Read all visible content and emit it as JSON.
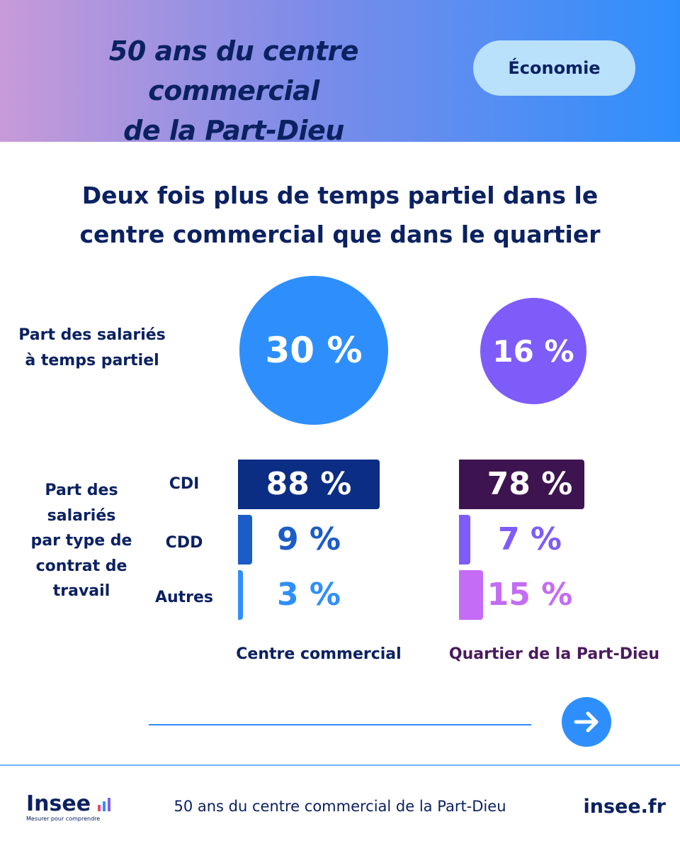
{
  "header": {
    "title_line1": "50 ans du centre commercial",
    "title_line2": "de la Part-Dieu",
    "tag": "Économie"
  },
  "main_title": {
    "line1": "Deux fois plus de temps partiel dans le",
    "line2": "centre commercial que dans le quartier"
  },
  "labels": {
    "part_time_line1": "Part des salariés",
    "part_time_line2": "à temps partiel",
    "contract_lines": [
      "Part des",
      "salariés",
      "par type de",
      "contrat de",
      "travail"
    ]
  },
  "chart_data": [
    {
      "type": "bubble",
      "title": "Part des salariés à temps partiel",
      "categories": [
        "Centre commercial",
        "Quartier de la Part-Dieu"
      ],
      "values": [
        30,
        16
      ],
      "value_labels": [
        "30 %",
        "16 %"
      ],
      "unit": "%",
      "colors": [
        "#2e8ffc",
        "#7d5cfa"
      ]
    },
    {
      "type": "bar",
      "orientation": "horizontal",
      "title": "Part des salariés par type de contrat de travail",
      "categories": [
        "CDI",
        "CDD",
        "Autres"
      ],
      "unit": "%",
      "max": 88,
      "series": [
        {
          "name": "Centre commercial",
          "values": [
            88,
            9,
            3
          ],
          "value_labels": [
            "88 %",
            "9 %",
            "3 %"
          ],
          "bar_colors": [
            "#0b2d84",
            "#1b5cc7",
            "#2e8ffc"
          ],
          "label_colors": [
            "#ffffff",
            "#1b5cc7",
            "#2e8ffc"
          ],
          "name_color": "#0b2161"
        },
        {
          "name": "Quartier de la Part-Dieu",
          "values": [
            78,
            7,
            15
          ],
          "value_labels": [
            "78 %",
            "7 %",
            "15 %"
          ],
          "bar_colors": [
            "#3e1450",
            "#7d5cfa",
            "#c46cf5"
          ],
          "label_colors": [
            "#ffffff",
            "#7d5cfa",
            "#c46cf5"
          ],
          "name_color": "#4a1a5c"
        }
      ]
    }
  ],
  "navigation": {
    "next_icon": "arrow-right-icon"
  },
  "footer": {
    "logo_word": "Insee",
    "logo_tagline": "Mesurer pour comprendre",
    "text": "50 ans du centre commercial de la Part-Dieu",
    "url": "insee.fr"
  }
}
